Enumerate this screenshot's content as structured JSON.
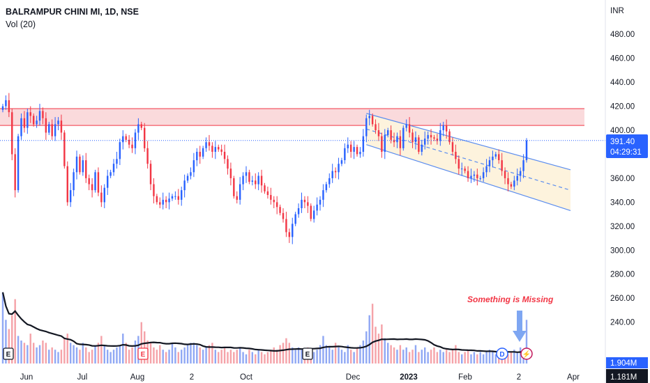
{
  "header": {
    "symbol": "BALRAMPUR CHINI MI, 1D, NSE",
    "volume_label": "Vol (20)"
  },
  "axis": {
    "currency": "INR",
    "y_ticks": [
      480,
      460,
      440,
      420,
      400,
      380,
      360,
      340,
      320,
      300,
      280,
      260,
      240
    ],
    "y_tick_labels": [
      "480.00",
      "460.00",
      "440.00",
      "420.00",
      "400.00",
      "380.00",
      "360.00",
      "340.00",
      "320.00",
      "300.00",
      "280.00",
      "260.00",
      "240.00"
    ],
    "x_ticks": [
      {
        "label": "Jun",
        "bold": false
      },
      {
        "label": "Jul",
        "bold": false
      },
      {
        "label": "Aug",
        "bold": false
      },
      {
        "label": "2",
        "bold": false
      },
      {
        "label": "Oct",
        "bold": false
      },
      {
        "label": "Dec",
        "bold": false
      },
      {
        "label": "2023",
        "bold": true
      },
      {
        "label": "Feb",
        "bold": false
      },
      {
        "label": "2",
        "bold": false
      },
      {
        "label": "Apr",
        "bold": false
      }
    ]
  },
  "price_tag": {
    "value": "391.40",
    "countdown": "04:29:31",
    "level": 391.4
  },
  "volume_tag": {
    "value": "1.904M",
    "ma_value": "1.181M"
  },
  "annotation": {
    "text": "Something is Missing"
  },
  "colors": {
    "up": "#2962ff",
    "down": "#f23645",
    "vol_up": "#90a8f4",
    "vol_down": "#f5a3a9",
    "zone_fill": "#f8cdd0",
    "zone_line": "#f23645",
    "channel_line": "#5b8def",
    "channel_fill": "#fdf3dd"
  },
  "zones": [
    {
      "from": 404,
      "to": 418
    }
  ],
  "events": [
    {
      "glyph": "E",
      "kind": "earnings-icon"
    },
    {
      "glyph": "E",
      "kind": "earnings-icon"
    },
    {
      "glyph": "E",
      "kind": "earnings-icon"
    },
    {
      "glyph": "D",
      "kind": "dividend-icon"
    },
    {
      "glyph": "⚡",
      "kind": "split-icon"
    }
  ],
  "chart_data": {
    "type": "candlestick",
    "y_axis": {
      "range": [
        230,
        490
      ],
      "unit": "INR"
    },
    "series": [
      {
        "name": "close",
        "values": [
          420,
          425,
          415,
          380,
          350,
          395,
          410,
          402,
          415,
          412,
          405,
          408,
          416,
          410,
          398,
          405,
          395,
          405,
          408,
          398,
          370,
          340,
          350,
          365,
          378,
          365,
          375,
          360,
          355,
          350,
          365,
          348,
          340,
          352,
          362,
          365,
          372,
          376,
          390,
          395,
          392,
          388,
          385,
          398,
          405,
          402,
          385,
          372,
          355,
          345,
          340,
          338,
          342,
          340,
          343,
          345,
          345,
          342,
          350,
          358,
          362,
          365,
          375,
          382,
          378,
          385,
          390,
          387,
          382,
          386,
          384,
          382,
          376,
          368,
          360,
          345,
          342,
          355,
          362,
          365,
          357,
          358,
          355,
          362,
          354,
          349,
          346,
          342,
          340,
          336,
          331,
          326,
          315,
          311,
          322,
          330,
          335,
          342,
          340,
          337,
          326,
          333,
          338,
          342,
          350,
          355,
          360,
          366,
          365,
          372,
          375,
          385,
          388,
          382,
          386,
          380,
          382,
          395,
          410,
          412,
          405,
          400,
          395,
          382,
          396,
          400,
          392,
          390,
          395,
          385,
          402,
          405,
          398,
          390,
          394,
          382,
          388,
          393,
          396,
          394,
          393,
          391,
          400,
          404,
          399,
          390,
          382,
          376,
          368,
          368,
          366,
          360,
          362,
          363,
          360,
          360,
          365,
          370,
          375,
          378,
          380,
          375,
          366,
          360,
          355,
          353,
          358,
          362,
          366,
          375,
          391.4
        ]
      },
      {
        "name": "volume",
        "values": [
          3.1,
          1.9,
          1.5,
          2.1,
          2.8,
          1.2,
          1.0,
          0.9,
          0.8,
          1.3,
          0.9,
          0.7,
          0.8,
          1.0,
          0.9,
          0.6,
          0.7,
          0.6,
          0.5,
          0.6,
          1.1,
          1.3,
          0.9,
          0.8,
          0.7,
          0.6,
          0.9,
          0.7,
          0.5,
          0.6,
          0.8,
          0.9,
          1.2,
          0.8,
          0.6,
          0.5,
          0.6,
          0.7,
          0.8,
          1.3,
          0.9,
          0.6,
          0.7,
          1.0,
          1.2,
          1.8,
          1.4,
          1.0,
          0.9,
          0.7,
          0.6,
          0.8,
          0.6,
          0.5,
          0.6,
          0.9,
          0.7,
          0.5,
          0.6,
          0.7,
          0.8,
          0.9,
          0.9,
          0.8,
          0.7,
          0.6,
          0.7,
          0.8,
          0.9,
          0.6,
          0.5,
          0.6,
          0.7,
          0.5,
          0.6,
          0.5,
          0.6,
          0.7,
          0.5,
          0.4,
          0.6,
          0.5,
          0.4,
          0.6,
          0.5,
          0.4,
          0.5,
          0.6,
          0.7,
          0.6,
          0.8,
          0.9,
          1.1,
          0.9,
          0.7,
          0.6,
          0.7,
          0.6,
          0.5,
          0.7,
          0.6,
          0.5,
          0.6,
          0.8,
          1.2,
          0.8,
          0.7,
          0.6,
          0.9,
          0.7,
          0.6,
          0.5,
          0.8,
          0.6,
          0.5,
          0.7,
          0.8,
          1.0,
          1.4,
          2.1,
          2.6,
          1.6,
          1.3,
          1.7,
          1.1,
          0.9,
          0.8,
          0.7,
          0.6,
          0.8,
          0.6,
          0.7,
          0.5,
          0.6,
          0.8,
          0.5,
          0.6,
          0.7,
          0.5,
          0.6,
          0.7,
          0.5,
          0.6,
          0.5,
          0.6,
          0.5,
          0.6,
          0.8,
          0.5,
          0.4,
          0.5,
          0.6,
          0.4,
          0.5,
          0.4,
          0.5,
          0.4,
          0.5,
          0.6,
          0.5,
          0.4,
          0.5,
          0.6,
          0.5,
          0.4,
          0.5,
          0.6,
          0.5,
          0.7,
          0.6,
          1.9
        ]
      }
    ]
  }
}
